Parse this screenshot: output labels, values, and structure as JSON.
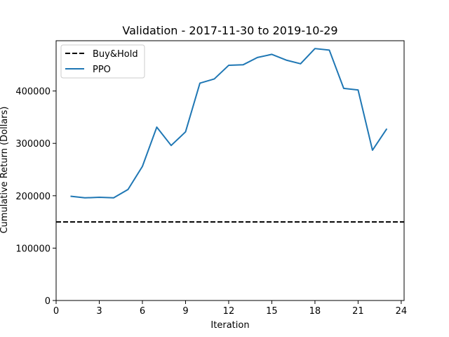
{
  "chart_data": {
    "type": "line",
    "title": "Validation - 2017-11-30 to 2019-10-29",
    "xlabel": "Iteration",
    "ylabel": "Cumulative Return (Dollars)",
    "xlim": [
      0,
      24.2
    ],
    "ylim": [
      0,
      496000
    ],
    "xticks": [
      0,
      3,
      6,
      9,
      12,
      15,
      18,
      21,
      24
    ],
    "xtick_labels": [
      "0",
      "3",
      "6",
      "9",
      "12",
      "15",
      "18",
      "21",
      "24"
    ],
    "yticks": [
      0,
      100000,
      200000,
      300000,
      400000
    ],
    "ytick_labels": [
      "0",
      "100000",
      "200000",
      "300000",
      "400000"
    ],
    "grid": false,
    "legend_position": "upper-left",
    "series": [
      {
        "name": "Buy&Hold",
        "style": "dashed",
        "color": "#000000",
        "hline": 150000
      },
      {
        "name": "PPO",
        "style": "solid",
        "color": "#1f77b4",
        "x": [
          1,
          2,
          3,
          4,
          5,
          6,
          7,
          8,
          9,
          10,
          11,
          12,
          13,
          14,
          15,
          16,
          17,
          18,
          19,
          20,
          21,
          22,
          23
        ],
        "y": [
          199000,
          196000,
          197000,
          196000,
          212000,
          256000,
          331000,
          296000,
          322000,
          415000,
          423000,
          449000,
          450000,
          464000,
          470000,
          459000,
          452000,
          481000,
          478000,
          405000,
          402000,
          287000,
          328000
        ]
      }
    ]
  }
}
